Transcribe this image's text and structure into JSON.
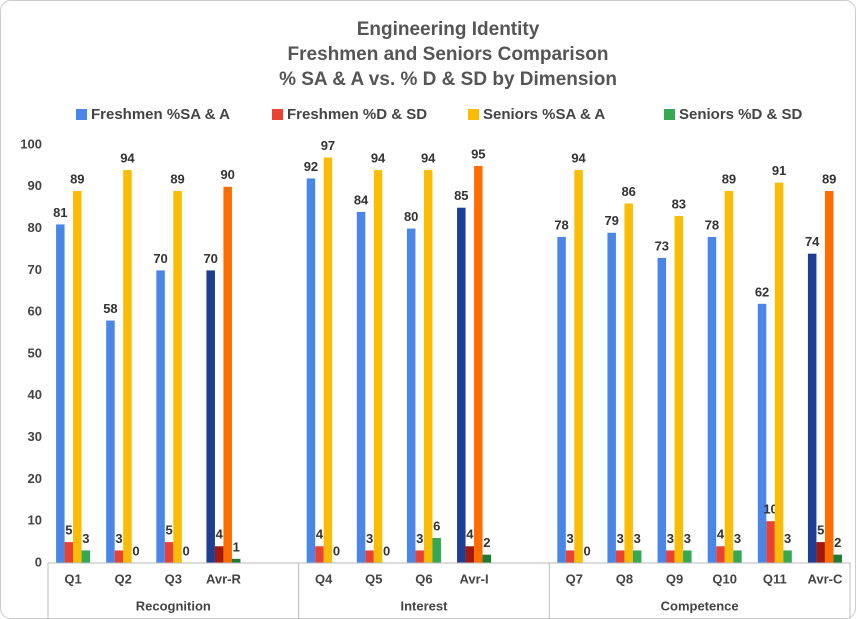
{
  "chart_data": {
    "type": "bar",
    "title": [
      "Engineering Identity",
      "Freshmen and Seniors Comparison",
      "% SA & A vs. % D & SD by Dimension"
    ],
    "categories": [
      "Q1",
      "Q2",
      "Q3",
      "Avr-R",
      "Q4",
      "Q5",
      "Q6",
      "Avr-I",
      "Q7",
      "Q8",
      "Q9",
      "Q10",
      "Q11",
      "Avr-C"
    ],
    "groups": [
      {
        "name": "Recognition",
        "size": 4
      },
      {
        "name": "Interest",
        "size": 4
      },
      {
        "name": "Competence",
        "size": 6
      }
    ],
    "series": [
      {
        "name": "Freshmen %SA & A",
        "color": "#4a86e8",
        "colors": [
          "#4a86e8",
          "#4a86e8",
          "#4a86e8",
          "#1c3f94",
          "#4a86e8",
          "#4a86e8",
          "#4a86e8",
          "#1c3f94",
          "#4a86e8",
          "#4a86e8",
          "#4a86e8",
          "#4a86e8",
          "#4a86e8",
          "#1c3f94"
        ],
        "values": [
          81,
          58,
          70,
          70,
          92,
          84,
          80,
          85,
          78,
          79,
          73,
          78,
          62,
          74
        ]
      },
      {
        "name": "Freshmen %D & SD",
        "color": "#e94235",
        "colors": [
          "#e94235",
          "#e94235",
          "#e94235",
          "#a3190f",
          "#e94235",
          "#e94235",
          "#e94235",
          "#a3190f",
          "#e94235",
          "#e94235",
          "#e94235",
          "#e94235",
          "#e94235",
          "#a3190f"
        ],
        "values": [
          5,
          3,
          5,
          4,
          4,
          3,
          3,
          4,
          3,
          3,
          3,
          4,
          10,
          5
        ]
      },
      {
        "name": "Seniors %SA & A",
        "color": "#fbbc05",
        "colors": [
          "#fbbc05",
          "#fbbc05",
          "#fbbc05",
          "#ff6d01",
          "#fbbc05",
          "#fbbc05",
          "#fbbc05",
          "#ff6d01",
          "#fbbc05",
          "#fbbc05",
          "#fbbc05",
          "#fbbc05",
          "#fbbc05",
          "#ff6d01"
        ],
        "values": [
          89,
          94,
          89,
          90,
          97,
          94,
          94,
          95,
          94,
          86,
          83,
          89,
          91,
          89
        ]
      },
      {
        "name": "Seniors %D & SD",
        "color": "#34a853",
        "colors": [
          "#34a853",
          "#34a853",
          "#34a853",
          "#1e7b34",
          "#34a853",
          "#34a853",
          "#34a853",
          "#1e7b34",
          "#34a853",
          "#34a853",
          "#34a853",
          "#34a853",
          "#34a853",
          "#1e7b34"
        ],
        "values": [
          3,
          0,
          0,
          1,
          0,
          0,
          6,
          2,
          0,
          3,
          3,
          3,
          3,
          2
        ]
      }
    ],
    "ylim": [
      0,
      100
    ],
    "yticks": [
      0,
      10,
      20,
      30,
      40,
      50,
      60,
      70,
      80,
      90,
      100
    ],
    "grid": false
  }
}
